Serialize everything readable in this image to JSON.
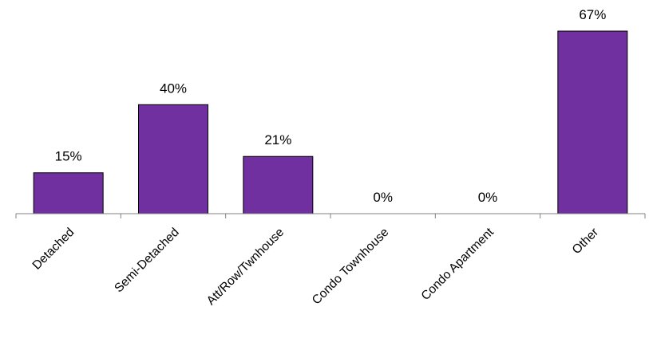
{
  "chart_data": {
    "type": "bar",
    "categories": [
      "Detached",
      "Semi-Detached",
      "Att/Row/Twnhouse",
      "Condo Townhouse",
      "Condo Apartment",
      "Other"
    ],
    "values": [
      15,
      40,
      21,
      0,
      0,
      67
    ],
    "data_labels": [
      "15%",
      "40%",
      "21%",
      "0%",
      "0%",
      "67%"
    ],
    "title": "",
    "xlabel": "",
    "ylabel": "",
    "ylim": [
      0,
      67
    ],
    "grid": false,
    "legend": "none",
    "bar_color": "#7030A0"
  }
}
